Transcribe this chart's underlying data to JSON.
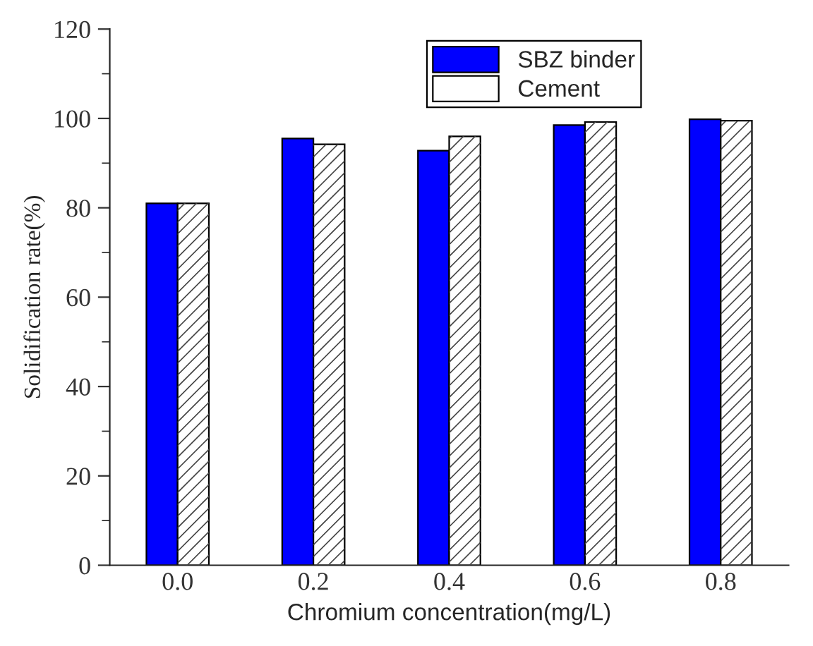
{
  "chart_data": {
    "type": "bar",
    "xlabel": "Chromium concentration(mg/L)",
    "ylabel": "Solidification rate(%)",
    "categories": [
      "0.0",
      "0.2",
      "0.4",
      "0.6",
      "0.8"
    ],
    "series": [
      {
        "name": "SBZ binder",
        "color": "#0000ff",
        "values": [
          81,
          95.5,
          92.8,
          98.5,
          99.8
        ]
      },
      {
        "name": "Cement",
        "color": "#ffffff",
        "values": [
          81,
          94.2,
          96,
          99.2,
          99.5
        ]
      }
    ],
    "ylim": [
      0,
      120
    ],
    "yticks": [
      0,
      20,
      40,
      60,
      80,
      100,
      120
    ],
    "grid": false,
    "legend": "top right"
  }
}
